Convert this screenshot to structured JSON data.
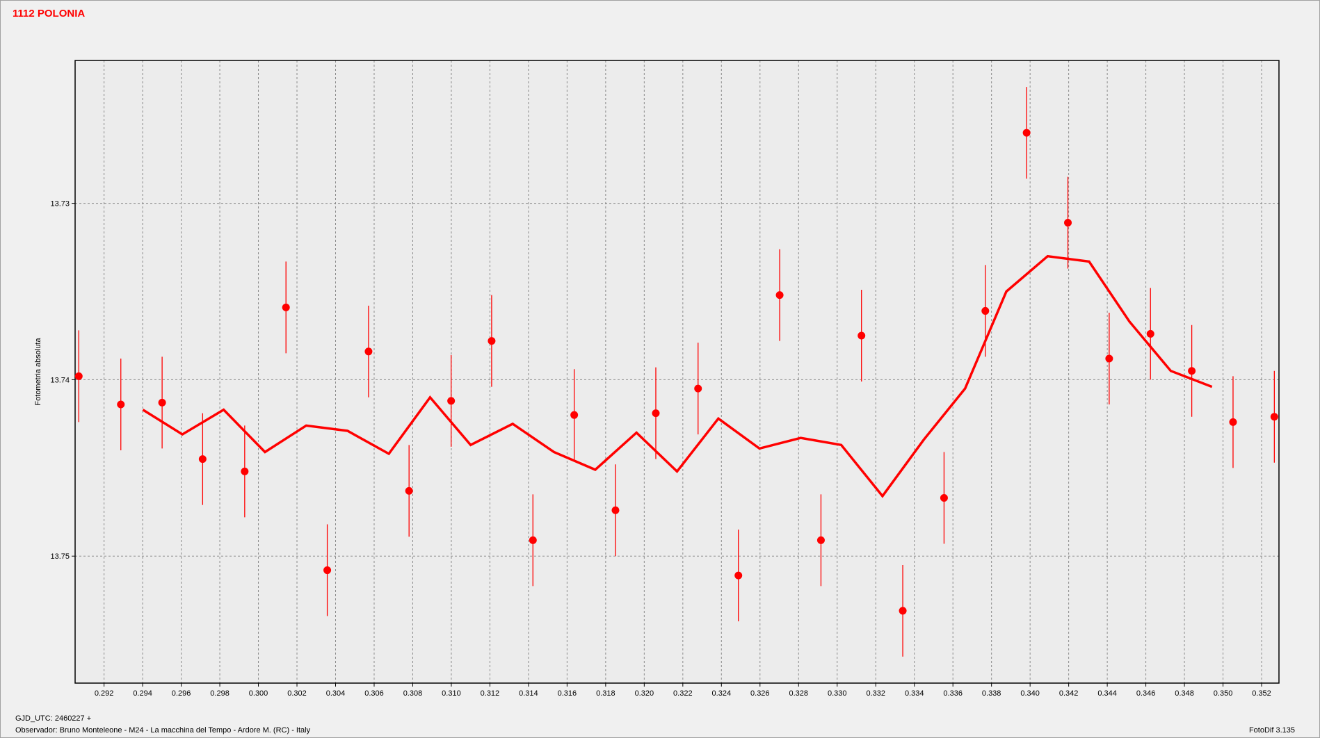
{
  "chart_data": {
    "type": "scatter",
    "title": "1112 POLONIA",
    "y_label": "Fotometria absoluta",
    "footer": [
      "GJD_UTC: 2460227 +",
      "Observador: Bruno Monteleone - M24 - La macchina del Tempo - Ardore M. (RC) - Italy"
    ],
    "software": "FotoDif 3.135",
    "color": "#ff0000",
    "grid": true,
    "y_inverted": true,
    "xlim": [
      0.2905,
      0.3529
    ],
    "ylim": [
      13.7219,
      13.7572
    ],
    "xticks": [
      0.292,
      0.294,
      0.296,
      0.298,
      {
        "value": 0.3,
        "label": "0.300"
      },
      0.302,
      0.304,
      0.306,
      0.308,
      {
        "value": 0.31,
        "label": "0.310"
      },
      0.312,
      0.314,
      0.316,
      0.318,
      {
        "value": 0.32,
        "label": "0.320"
      },
      0.322,
      0.324,
      0.326,
      0.328,
      {
        "value": 0.33,
        "label": "0.330"
      },
      0.332,
      0.334,
      0.336,
      0.338,
      {
        "value": 0.34,
        "label": "0.340"
      },
      0.342,
      0.344,
      0.346,
      0.348,
      {
        "value": 0.35,
        "label": "0.350"
      },
      0.352
    ],
    "yticks": [
      13.73,
      13.74,
      13.75
    ],
    "points": {
      "x": [
        0.29069,
        0.29287,
        0.29501,
        0.29711,
        0.29929,
        0.30143,
        0.30357,
        0.30571,
        0.30781,
        0.30999,
        0.31209,
        0.31423,
        0.31637,
        0.31851,
        0.3206,
        0.32279,
        0.32488,
        0.32702,
        0.32916,
        0.33126,
        0.3334,
        0.33554,
        0.33768,
        0.33982,
        0.34196,
        0.3441,
        0.34624,
        0.34838,
        0.35052,
        0.35266
      ],
      "values": [
        13.7398,
        13.7414,
        13.7413,
        13.7445,
        13.7452,
        13.7359,
        13.7508,
        13.7384,
        13.7463,
        13.7412,
        13.7378,
        13.7491,
        13.742,
        13.7474,
        13.7419,
        13.7405,
        13.7511,
        13.7352,
        13.7491,
        13.7375,
        13.7531,
        13.7467,
        13.7361,
        13.726,
        13.7311,
        13.7388,
        13.7374,
        13.7395,
        13.7424,
        13.7421
      ],
      "errors": [
        0.0026,
        0.0026,
        0.0026,
        0.0026,
        0.0026,
        0.0026,
        0.0026,
        0.0026,
        0.0026,
        0.0026,
        0.0026,
        0.0026,
        0.0026,
        0.0026,
        0.0026,
        0.0026,
        0.0026,
        0.0026,
        0.0026,
        0.0026,
        0.0026,
        0.0026,
        0.0026,
        0.0026,
        0.0026,
        0.0026,
        0.0026,
        0.0026,
        0.0026,
        0.0026
      ]
    },
    "line": {
      "x": [
        0.29401,
        0.29606,
        0.2982,
        0.30034,
        0.30248,
        0.30462,
        0.30676,
        0.3089,
        0.311,
        0.31318,
        0.31532,
        0.31746,
        0.3196,
        0.3217,
        0.32384,
        0.32597,
        0.32811,
        0.33021,
        0.33235,
        0.33449,
        0.33663,
        0.33877,
        0.34091,
        0.34306,
        0.34515,
        0.34729,
        0.34943
      ],
      "values": [
        13.7417,
        13.7431,
        13.7417,
        13.7441,
        13.7426,
        13.7429,
        13.7442,
        13.741,
        13.7437,
        13.7425,
        13.7441,
        13.7451,
        13.743,
        13.7452,
        13.7422,
        13.7439,
        13.7433,
        13.7437,
        13.7466,
        13.7434,
        13.7405,
        13.735,
        13.733,
        13.7333,
        13.7367,
        13.7395,
        13.7404
      ]
    }
  }
}
